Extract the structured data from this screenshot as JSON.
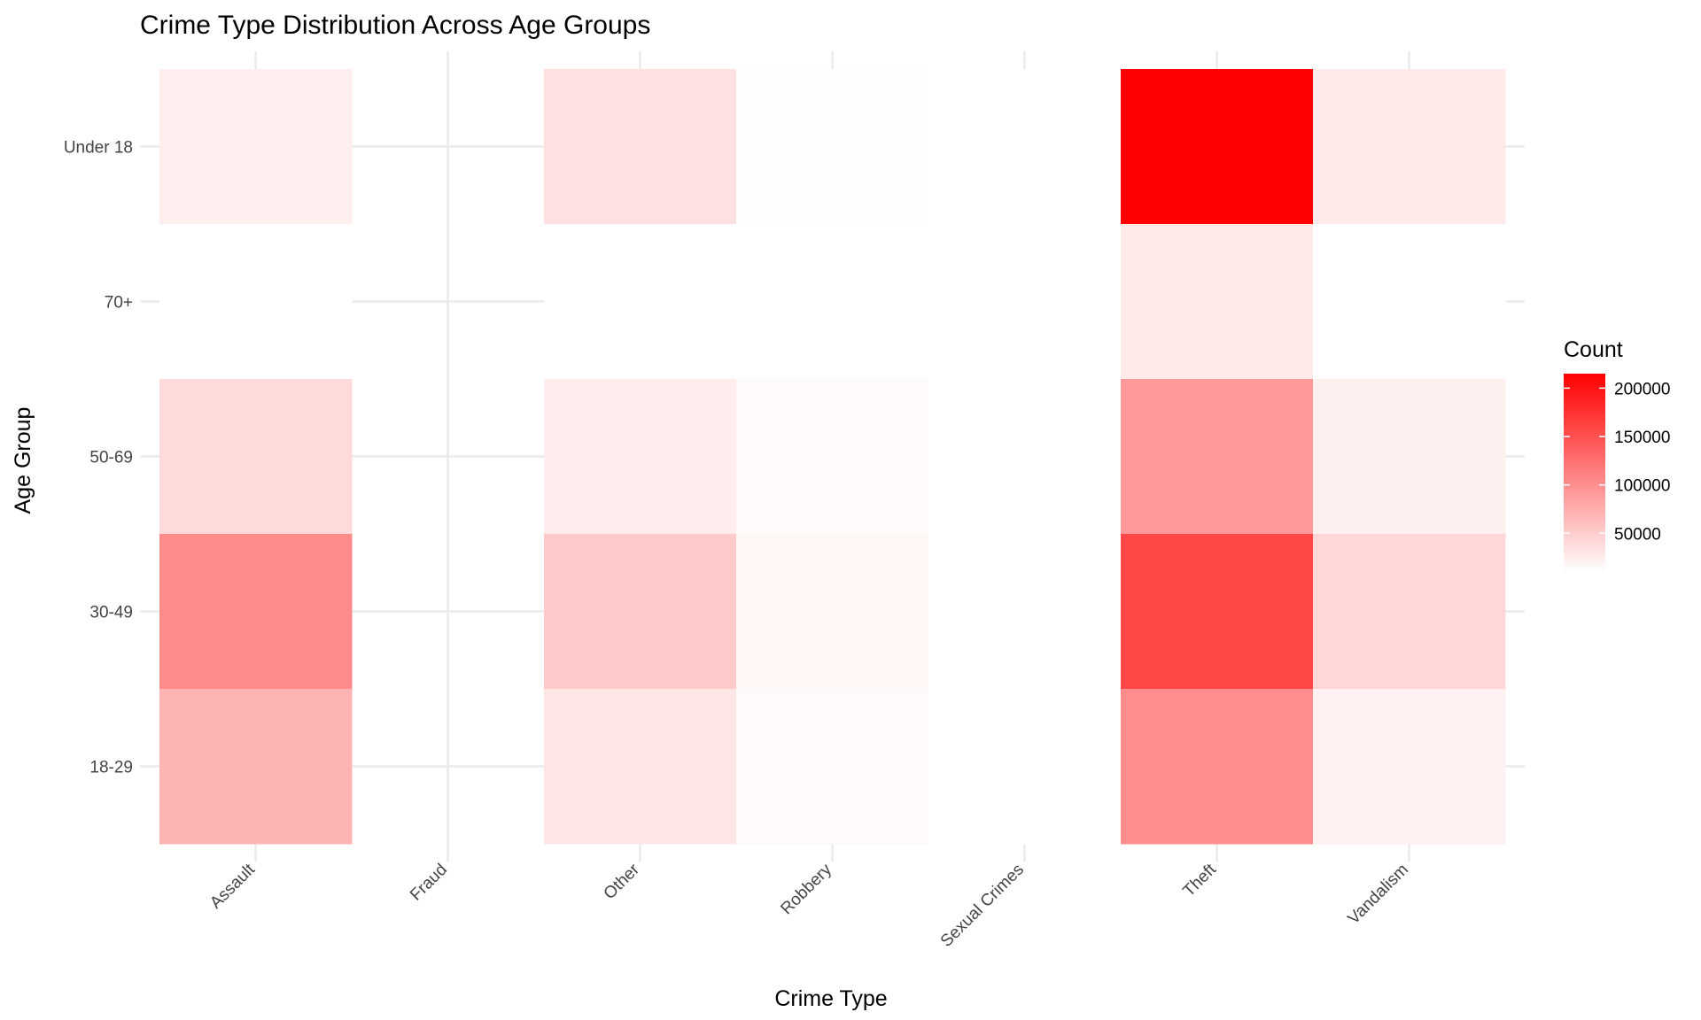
{
  "chart_data": {
    "type": "heatmap",
    "title": "Crime Type Distribution Across Age Groups",
    "xlabel": "Crime Type",
    "ylabel": "Age Group",
    "x_categories": [
      "Assault",
      "Fraud",
      "Other",
      "Robbery",
      "Sexual Crimes",
      "Theft",
      "Vandalism"
    ],
    "y_categories": [
      "Under 18",
      "70+",
      "50-69",
      "30-49",
      "18-29"
    ],
    "values": [
      [
        24000,
        null,
        35000,
        12000,
        4000,
        215000,
        28000
      ],
      [
        7000,
        null,
        7000,
        1000,
        1000,
        27000,
        5000
      ],
      [
        40000,
        null,
        25000,
        14000,
        2000,
        92000,
        22000
      ],
      [
        103000,
        null,
        53000,
        17000,
        5000,
        158000,
        42000
      ],
      [
        70000,
        null,
        30000,
        15000,
        4000,
        102000,
        21000
      ]
    ],
    "color_scale": {
      "low": "#ffffff",
      "high": "#ff0000",
      "domain": [
        10000,
        215000
      ]
    },
    "legend": {
      "title": "Count",
      "ticks": [
        50000,
        100000,
        150000,
        200000
      ],
      "position": "right"
    },
    "grid": true
  }
}
